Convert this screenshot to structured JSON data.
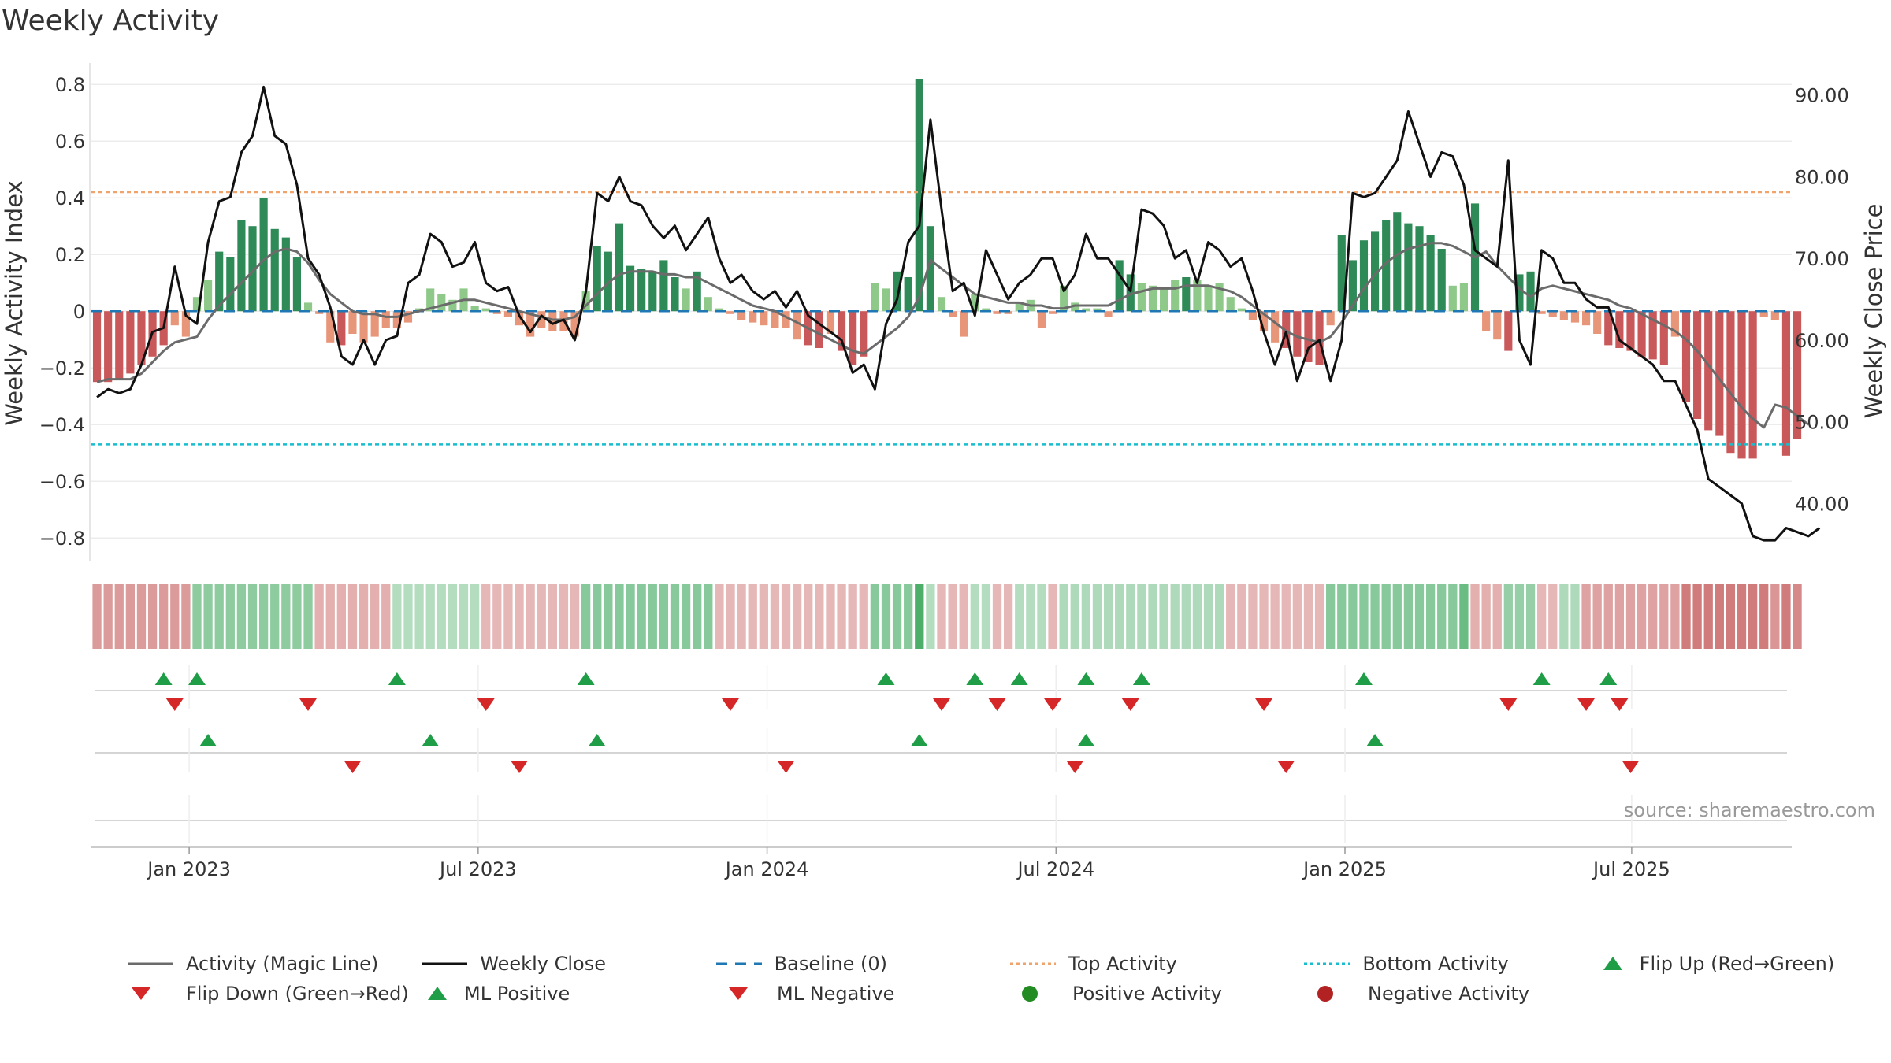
{
  "chart_data": {
    "type": "line",
    "title": "Weekly Activity",
    "source": "source: sharemaestro.com",
    "ylabel_left": "Weekly Activity Index",
    "ylabel_right": "Weekly Close Price",
    "yticks_left": [
      "0.8",
      "0.6",
      "0.4",
      "0.2",
      "0",
      "−0.2",
      "−0.4",
      "−0.6",
      "−0.8"
    ],
    "yticks_right": [
      "90.00",
      "80.00",
      "70.00",
      "60.00",
      "50.00",
      "40.00"
    ],
    "xticks": [
      "Jan 2023",
      "Jul 2023",
      "Jan 2024",
      "Jul 2024",
      "Jan 2025",
      "Jul 2025"
    ],
    "ylim_left": [
      -0.88,
      0.82
    ],
    "ylim_right": [
      33,
      92
    ],
    "weeks": 153,
    "top_activity": 0.42,
    "bottom_activity": -0.47,
    "baseline": 0,
    "activity": [
      -0.25,
      -0.25,
      -0.24,
      -0.22,
      -0.19,
      -0.16,
      -0.12,
      -0.05,
      -0.09,
      0.05,
      0.11,
      0.21,
      0.19,
      0.32,
      0.3,
      0.4,
      0.29,
      0.26,
      0.19,
      0.03,
      -0.01,
      -0.11,
      -0.12,
      -0.08,
      -0.11,
      -0.09,
      -0.06,
      -0.06,
      -0.04,
      0.01,
      0.08,
      0.06,
      0.04,
      0.08,
      0.02,
      0.01,
      -0.01,
      -0.02,
      -0.05,
      -0.09,
      -0.06,
      -0.07,
      -0.07,
      -0.09,
      0.07,
      0.23,
      0.21,
      0.31,
      0.16,
      0.15,
      0.14,
      0.18,
      0.12,
      0.08,
      0.14,
      0.05,
      0.01,
      -0.01,
      -0.03,
      -0.04,
      -0.05,
      -0.06,
      -0.06,
      -0.1,
      -0.12,
      -0.13,
      -0.08,
      -0.14,
      -0.19,
      -0.16,
      0.1,
      0.08,
      0.14,
      0.12,
      0.82,
      0.3,
      0.05,
      -0.02,
      -0.09,
      0.06,
      0.01,
      -0.01,
      -0.01,
      0.03,
      0.04,
      -0.06,
      -0.01,
      0.09,
      0.03,
      0.01,
      0.01,
      -0.02,
      0.18,
      0.13,
      0.1,
      0.09,
      0.08,
      0.11,
      0.12,
      0.11,
      0.09,
      0.1,
      0.05,
      0.01,
      -0.03,
      -0.07,
      -0.11,
      -0.13,
      -0.16,
      -0.18,
      -0.19,
      -0.05,
      0.27,
      0.18,
      0.25,
      0.28,
      0.32,
      0.35,
      0.31,
      0.3,
      0.27,
      0.22,
      0.09,
      0.1,
      0.38,
      -0.07,
      -0.1,
      -0.14,
      0.13,
      0.14,
      -0.01,
      -0.02,
      -0.03,
      -0.04,
      -0.05,
      -0.08,
      -0.12,
      -0.13,
      -0.14,
      -0.16,
      -0.17,
      -0.19,
      -0.09,
      -0.32,
      -0.38,
      -0.42,
      -0.44,
      -0.5,
      -0.52,
      -0.52,
      -0.02,
      -0.03,
      -0.51,
      -0.45
    ],
    "magic_line": [
      -0.25,
      -0.24,
      -0.24,
      -0.24,
      -0.22,
      -0.18,
      -0.14,
      -0.11,
      -0.1,
      -0.09,
      -0.03,
      0.02,
      0.06,
      0.1,
      0.14,
      0.18,
      0.21,
      0.22,
      0.21,
      0.17,
      0.11,
      0.06,
      0.03,
      0.0,
      -0.01,
      -0.01,
      -0.02,
      -0.02,
      -0.01,
      0.0,
      0.01,
      0.02,
      0.03,
      0.04,
      0.04,
      0.03,
      0.02,
      0.01,
      0.0,
      -0.01,
      -0.02,
      -0.03,
      -0.03,
      -0.02,
      0.02,
      0.06,
      0.1,
      0.13,
      0.14,
      0.14,
      0.14,
      0.13,
      0.13,
      0.12,
      0.12,
      0.1,
      0.08,
      0.06,
      0.04,
      0.02,
      0.01,
      0.0,
      -0.02,
      -0.04,
      -0.06,
      -0.08,
      -0.1,
      -0.12,
      -0.14,
      -0.15,
      -0.12,
      -0.09,
      -0.06,
      -0.02,
      0.05,
      0.18,
      0.15,
      0.12,
      0.09,
      0.06,
      0.05,
      0.04,
      0.03,
      0.03,
      0.02,
      0.02,
      0.01,
      0.01,
      0.02,
      0.02,
      0.02,
      0.02,
      0.04,
      0.06,
      0.07,
      0.08,
      0.08,
      0.08,
      0.09,
      0.09,
      0.09,
      0.08,
      0.07,
      0.05,
      0.02,
      -0.01,
      -0.04,
      -0.07,
      -0.09,
      -0.1,
      -0.11,
      -0.09,
      -0.04,
      0.02,
      0.08,
      0.13,
      0.17,
      0.2,
      0.22,
      0.23,
      0.24,
      0.24,
      0.23,
      0.21,
      0.19,
      0.21,
      0.16,
      0.12,
      0.08,
      0.05,
      0.08,
      0.09,
      0.08,
      0.07,
      0.06,
      0.05,
      0.04,
      0.02,
      0.01,
      -0.01,
      -0.03,
      -0.05,
      -0.07,
      -0.1,
      -0.14,
      -0.19,
      -0.24,
      -0.29,
      -0.34,
      -0.38,
      -0.41,
      -0.33,
      -0.34,
      -0.37,
      -0.4
    ],
    "close": [
      53,
      54,
      53.5,
      54,
      57,
      61,
      61.5,
      69,
      63,
      62,
      72,
      77,
      77.5,
      83,
      85,
      91,
      85,
      84,
      79,
      70,
      68,
      64,
      58,
      57,
      60,
      57,
      60,
      60.5,
      67,
      68,
      73,
      72,
      69,
      69.5,
      72,
      67,
      66,
      66.5,
      63,
      61,
      63,
      62,
      62.5,
      60,
      66,
      78,
      77,
      80,
      77,
      76.5,
      74,
      72.5,
      74,
      71,
      73,
      75,
      70,
      67,
      68,
      66,
      65,
      66,
      64,
      66,
      63,
      62,
      61,
      60,
      56,
      57,
      54,
      62,
      65,
      72,
      74,
      87,
      76,
      66,
      67,
      63,
      71,
      68,
      65,
      67,
      68,
      70,
      70,
      66,
      68,
      73,
      70,
      70,
      68,
      66,
      76,
      75.5,
      74,
      70,
      71,
      67,
      72,
      71,
      69,
      70,
      66,
      61,
      57,
      61,
      55,
      59,
      60,
      55,
      60,
      78,
      77.5,
      78,
      80,
      82,
      88,
      84,
      80,
      83,
      82.5,
      79,
      71,
      70,
      69,
      82,
      60,
      57,
      71,
      70,
      67,
      67,
      65,
      64,
      64,
      60,
      59,
      58,
      57,
      55,
      55,
      52,
      49,
      43,
      42,
      41,
      40,
      36,
      35.5,
      35.5,
      37,
      36.5,
      36,
      37
    ],
    "activity_strip": [
      -0.55,
      -0.55,
      -0.55,
      -0.55,
      -0.55,
      -0.55,
      -0.55,
      -0.55,
      -0.55,
      0.55,
      0.55,
      0.55,
      0.55,
      0.55,
      0.55,
      0.55,
      0.55,
      0.55,
      0.55,
      0.55,
      -0.4,
      -0.4,
      -0.4,
      -0.4,
      -0.4,
      -0.4,
      -0.4,
      0.3,
      0.3,
      0.3,
      0.3,
      0.3,
      0.3,
      0.3,
      0.3,
      -0.35,
      -0.35,
      -0.35,
      -0.35,
      -0.35,
      -0.35,
      -0.35,
      -0.35,
      -0.35,
      0.6,
      0.6,
      0.6,
      0.6,
      0.6,
      0.6,
      0.6,
      0.6,
      0.6,
      0.6,
      0.6,
      0.6,
      -0.35,
      -0.35,
      -0.35,
      -0.35,
      -0.35,
      -0.35,
      -0.35,
      -0.35,
      -0.35,
      -0.35,
      -0.35,
      -0.35,
      -0.35,
      -0.35,
      0.6,
      0.6,
      0.6,
      0.6,
      1.0,
      0.3,
      -0.35,
      -0.35,
      -0.35,
      0.3,
      0.3,
      -0.35,
      -0.35,
      0.3,
      0.3,
      0.3,
      -0.35,
      0.35,
      0.35,
      0.35,
      0.35,
      0.35,
      0.35,
      0.35,
      0.35,
      0.35,
      0.35,
      0.35,
      0.35,
      0.35,
      0.35,
      0.35,
      -0.35,
      -0.35,
      -0.35,
      -0.35,
      -0.35,
      -0.35,
      -0.35,
      -0.35,
      -0.35,
      0.6,
      0.6,
      0.6,
      0.6,
      0.6,
      0.6,
      0.6,
      0.6,
      0.6,
      0.6,
      0.6,
      0.6,
      0.8,
      -0.4,
      -0.4,
      -0.4,
      0.5,
      0.5,
      0.5,
      -0.35,
      -0.35,
      0.35,
      0.35,
      -0.5,
      -0.5,
      -0.5,
      -0.5,
      -0.5,
      -0.5,
      -0.5,
      -0.5,
      -0.5,
      -0.8,
      -0.8,
      -0.8,
      -0.8,
      -0.8,
      -0.8,
      -0.8,
      -0.8,
      -0.6,
      -0.8,
      -0.7
    ],
    "flip_up": [
      6,
      9,
      27,
      44,
      71,
      79,
      83,
      89,
      94,
      114,
      130,
      136
    ],
    "flip_down": [
      7,
      19,
      35,
      57,
      76,
      81,
      86,
      93,
      105,
      127,
      134,
      137
    ],
    "ml_positive": [
      10,
      30,
      45,
      74,
      89,
      115
    ],
    "ml_negative": [
      23,
      38,
      62,
      88,
      107,
      138
    ],
    "legend": [
      [
        "Activity (Magic Line)",
        "Weekly Close",
        "Baseline (0)",
        "Top Activity",
        "Bottom Activity",
        "Flip Up (Red→Green)"
      ],
      [
        "Flip Down (Green→Red)",
        "ML Positive",
        "ML Negative",
        "Positive Activity",
        "Negative Activity"
      ]
    ],
    "colors": {
      "magic_line": "#6b6b6b",
      "close": "#111111",
      "baseline": "#1f77b4",
      "top": "#f0a36a",
      "bottom": "#17becf",
      "flip_up": "#1f9d47",
      "flip_down": "#d62728",
      "positive": "#228b22",
      "negative": "#b22222",
      "pos_dark": "#2e8b57",
      "pos_light": "#8fc98a",
      "neg_dark": "#c8585a",
      "neg_light": "#e8967a"
    }
  }
}
